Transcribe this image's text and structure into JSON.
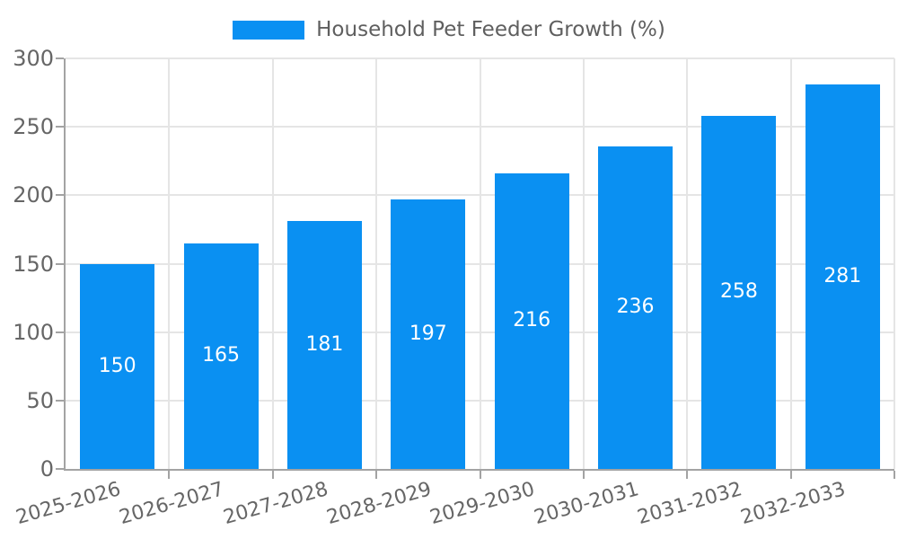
{
  "chart_data": {
    "type": "bar",
    "title": "Household Pet Feeder Growth (%)",
    "legend": {
      "position": "top-center",
      "label": "Household Pet Feeder Growth (%)"
    },
    "categories": [
      "2025-2026",
      "2026-2027",
      "2027-2028",
      "2028-2029",
      "2029-2030",
      "2030-2031",
      "2031-2032",
      "2032-2033"
    ],
    "values": [
      150,
      165,
      181,
      197,
      216,
      236,
      258,
      281
    ],
    "xlabel": "",
    "ylabel": "",
    "ylim": [
      0,
      300
    ],
    "ytick_step": 50,
    "yticks": [
      0,
      50,
      100,
      150,
      200,
      250,
      300
    ],
    "grid": true,
    "value_labels": "centered-inside-bars",
    "x_label_rotation_deg": 16
  },
  "colors": {
    "bar": "#0A90F2",
    "grid": "#E5E5E5",
    "axis": "#A3A3A3",
    "tick_text": "#666666",
    "legend_text": "#5F5F5F",
    "value_label": "#FFFFFF",
    "background": "#FFFFFF"
  }
}
